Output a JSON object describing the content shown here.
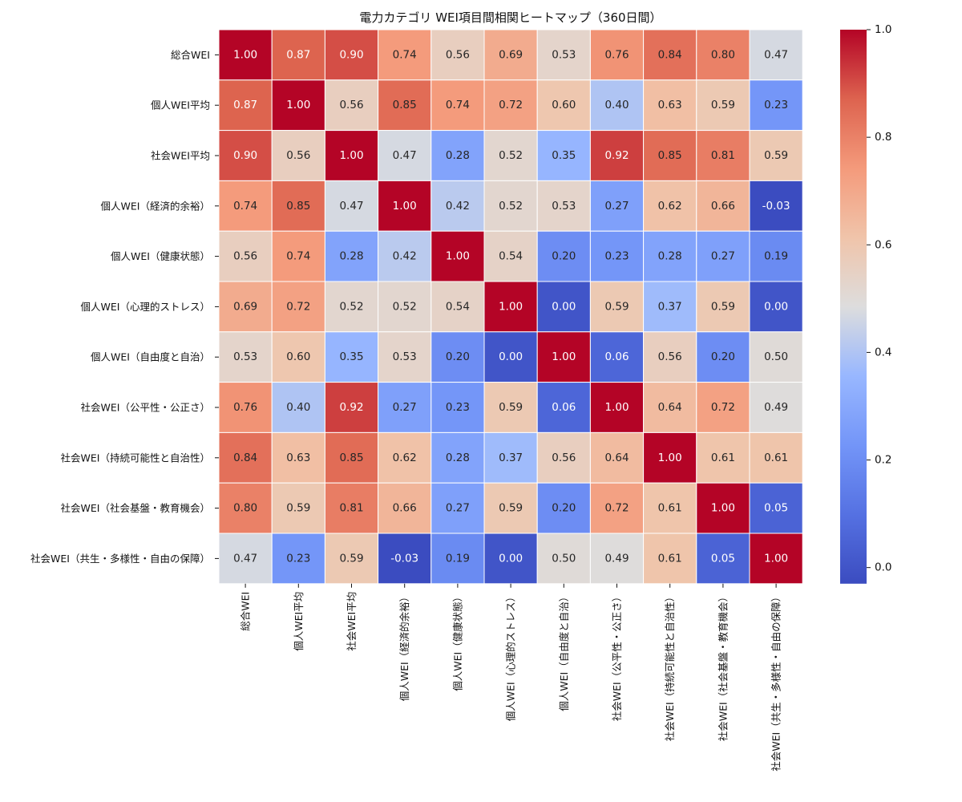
{
  "chart_data": {
    "type": "heatmap",
    "title": "電力カテゴリ WEI項目間相関ヒートマップ（360日間）",
    "labels": [
      "総合WEI",
      "個人WEI平均",
      "社会WEI平均",
      "個人WEI（経済的余裕）",
      "個人WEI（健康状態）",
      "個人WEI（心理的ストレス）",
      "個人WEI（自由度と自治）",
      "社会WEI（公平性・公正さ）",
      "社会WEI（持続可能性と自治性）",
      "社会WEI（社会基盤・教育機会）",
      "社会WEI（共生・多様性・自由の保障）"
    ],
    "matrix": [
      [
        1.0,
        0.87,
        0.9,
        0.74,
        0.56,
        0.69,
        0.53,
        0.76,
        0.84,
        0.8,
        0.47
      ],
      [
        0.87,
        1.0,
        0.56,
        0.85,
        0.74,
        0.72,
        0.6,
        0.4,
        0.63,
        0.59,
        0.23
      ],
      [
        0.9,
        0.56,
        1.0,
        0.47,
        0.28,
        0.52,
        0.35,
        0.92,
        0.85,
        0.81,
        0.59
      ],
      [
        0.74,
        0.85,
        0.47,
        1.0,
        0.42,
        0.52,
        0.53,
        0.27,
        0.62,
        0.66,
        -0.03
      ],
      [
        0.56,
        0.74,
        0.28,
        0.42,
        1.0,
        0.54,
        0.2,
        0.23,
        0.28,
        0.27,
        0.19
      ],
      [
        0.69,
        0.72,
        0.52,
        0.52,
        0.54,
        1.0,
        0.0,
        0.59,
        0.37,
        0.59,
        0.0
      ],
      [
        0.53,
        0.6,
        0.35,
        0.53,
        0.2,
        0.0,
        1.0,
        0.06,
        0.56,
        0.2,
        0.5
      ],
      [
        0.76,
        0.4,
        0.92,
        0.27,
        0.23,
        0.59,
        0.06,
        1.0,
        0.64,
        0.72,
        0.49
      ],
      [
        0.84,
        0.63,
        0.85,
        0.62,
        0.28,
        0.37,
        0.56,
        0.64,
        1.0,
        0.61,
        0.61
      ],
      [
        0.8,
        0.59,
        0.81,
        0.66,
        0.27,
        0.59,
        0.2,
        0.72,
        0.61,
        1.0,
        0.05
      ],
      [
        0.47,
        0.23,
        0.59,
        -0.03,
        0.19,
        0.0,
        0.5,
        0.49,
        0.61,
        0.05,
        1.0
      ]
    ],
    "value_range": [
      -0.03,
      1.0
    ],
    "colormap": "coolwarm",
    "colorbar": {
      "ticks": [
        0.0,
        0.2,
        0.4,
        0.6,
        0.8,
        1.0
      ],
      "tick_labels": [
        "0.0",
        "0.2",
        "0.4",
        "0.6",
        "0.8",
        "1.0"
      ]
    },
    "annotation_format": "0.00",
    "grid_line_color": "#ffffff"
  }
}
